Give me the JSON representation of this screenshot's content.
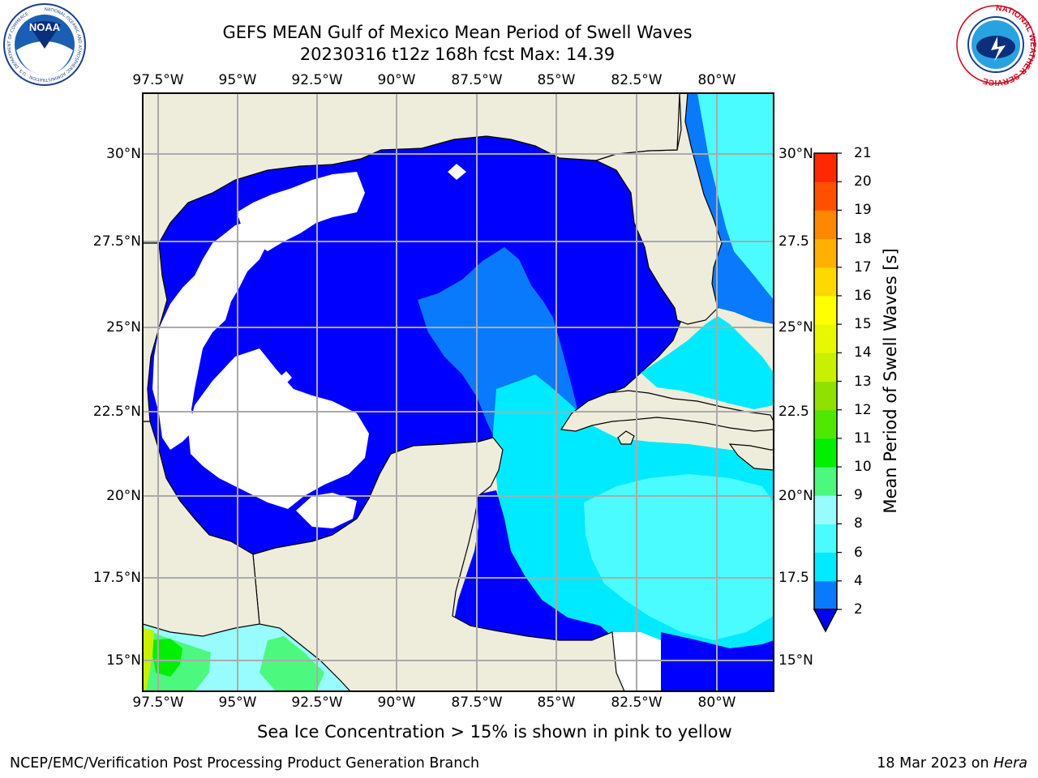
{
  "title": {
    "line1": "GEFS MEAN Gulf of Mexico Mean Period of Swell Waves",
    "line2": "20230316 t12z 168h fcst   Max: 14.39"
  },
  "logos": {
    "left": {
      "name": "noaa-logo",
      "text": "NOAA",
      "ring_text": "NATIONAL OCEANIC AND ATMOSPHERIC ADMINISTRATION · U.S. DEPARTMENT OF COMMERCE"
    },
    "right": {
      "name": "nws-logo",
      "ring_text": "NATIONAL WEATHER SERVICE"
    }
  },
  "map": {
    "lon_labels": [
      "97.5°W",
      "95°W",
      "92.5°W",
      "90°W",
      "87.5°W",
      "85°W",
      "82.5°W",
      "80°W"
    ],
    "lat_labels_left": [
      "30°N",
      "27.5°N",
      "25°N",
      "22.5°N",
      "20°N",
      "17.5°N",
      "15°N"
    ],
    "lat_labels_right": [
      "30°N",
      "27.5",
      "25°N",
      "22.5",
      "20°N",
      "17.5",
      "15°N"
    ],
    "land_color": "#eeeddc",
    "grid_color": "#aaaaaa"
  },
  "colorbar": {
    "label": "Mean Period of Swell Waves [s]",
    "ticks": [
      "2",
      "4",
      "6",
      "8",
      "9",
      "10",
      "11",
      "12",
      "13",
      "14",
      "15",
      "16",
      "17",
      "18",
      "19",
      "20",
      "21"
    ],
    "colors": [
      "#0a7afc",
      "#00eaff",
      "#4afcff",
      "#98fcff",
      "#4cf97e",
      "#00f000",
      "#4fe800",
      "#90e000",
      "#c8f000",
      "#e8f800",
      "#ffff00",
      "#ffd800",
      "#ffb000",
      "#ff8800",
      "#ff5000",
      "#ff2800",
      "#ff0000"
    ],
    "under_color": "#0000ff"
  },
  "caption": "Sea Ice Concentration > 15% is shown in pink to yellow",
  "footer": {
    "left": "NCEP/EMC/Verification Post Processing Product Generation Branch",
    "right_prefix": "18 Mar 2023 on ",
    "right_host": "Hera"
  }
}
